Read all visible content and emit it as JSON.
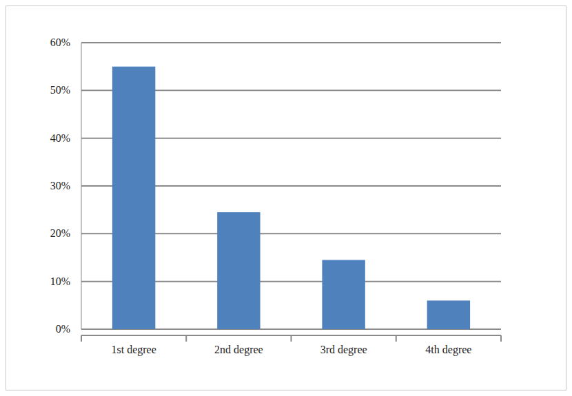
{
  "chart_data": {
    "type": "bar",
    "categories": [
      "1st degree",
      "2nd degree",
      "3rd degree",
      "4th degree"
    ],
    "values": [
      55,
      24.5,
      14.5,
      6
    ],
    "color": "#4f81bd",
    "ylim": [
      0,
      60
    ],
    "yticks": [
      {
        "value": 0,
        "label": "0%"
      },
      {
        "value": 10,
        "label": "10%"
      },
      {
        "value": 20,
        "label": "20%"
      },
      {
        "value": 30,
        "label": "30%"
      },
      {
        "value": 40,
        "label": "40%"
      },
      {
        "value": 50,
        "label": "50%"
      },
      {
        "value": 60,
        "label": "60%"
      }
    ],
    "grid": true
  }
}
